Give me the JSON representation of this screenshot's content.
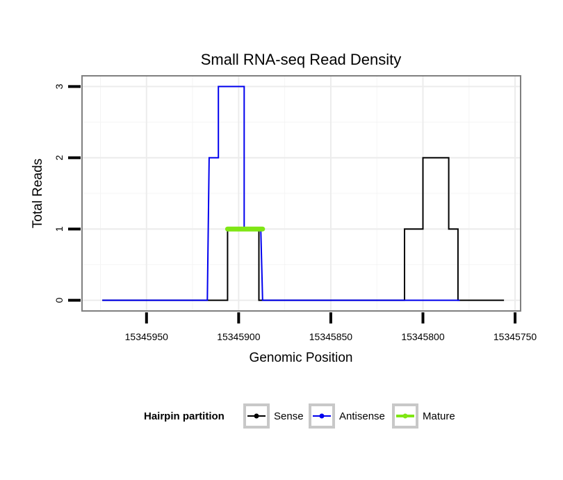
{
  "chart_data": {
    "type": "line",
    "title": "Small RNA-seq Read Density",
    "xlabel": "Genomic Position",
    "ylabel": "Total Reads",
    "x_reversed": true,
    "xlim": [
      15345985,
      15345747
    ],
    "ylim": [
      -0.15,
      3.15
    ],
    "x_ticks": [
      15345950,
      15345900,
      15345850,
      15345800,
      15345750
    ],
    "x_tick_labels": [
      "15345950",
      "15345900",
      "15345850",
      "15345800",
      "15345750"
    ],
    "y_ticks": [
      0,
      1,
      2,
      3
    ],
    "y_tick_labels": [
      "0",
      "1",
      "2",
      "3"
    ],
    "grid": true,
    "legend": {
      "title": "Hairpin partition",
      "position": "bottom",
      "entries": [
        "Sense",
        "Antisense",
        "Mature"
      ]
    },
    "series": [
      {
        "name": "Sense",
        "color": "#000000",
        "x": [
          15345974,
          15345916,
          15345906,
          15345906,
          15345889,
          15345889,
          15345810,
          15345810,
          15345800,
          15345800,
          15345786,
          15345786,
          15345781,
          15345781,
          15345756
        ],
        "y": [
          0,
          0,
          0,
          1,
          1,
          0,
          0,
          1,
          1,
          2,
          2,
          1,
          1,
          0,
          0
        ]
      },
      {
        "name": "Antisense",
        "color": "#0000ee",
        "x": [
          15345974,
          15345917,
          15345916,
          15345911,
          15345911,
          15345897,
          15345897,
          15345888,
          15345887,
          15345780
        ],
        "y": [
          0,
          0,
          2,
          2,
          3,
          3,
          1,
          1,
          0,
          0
        ]
      },
      {
        "name": "Mature",
        "color": "#7fe614",
        "x": [
          15345906,
          15345887
        ],
        "y": [
          1,
          1
        ]
      }
    ]
  }
}
